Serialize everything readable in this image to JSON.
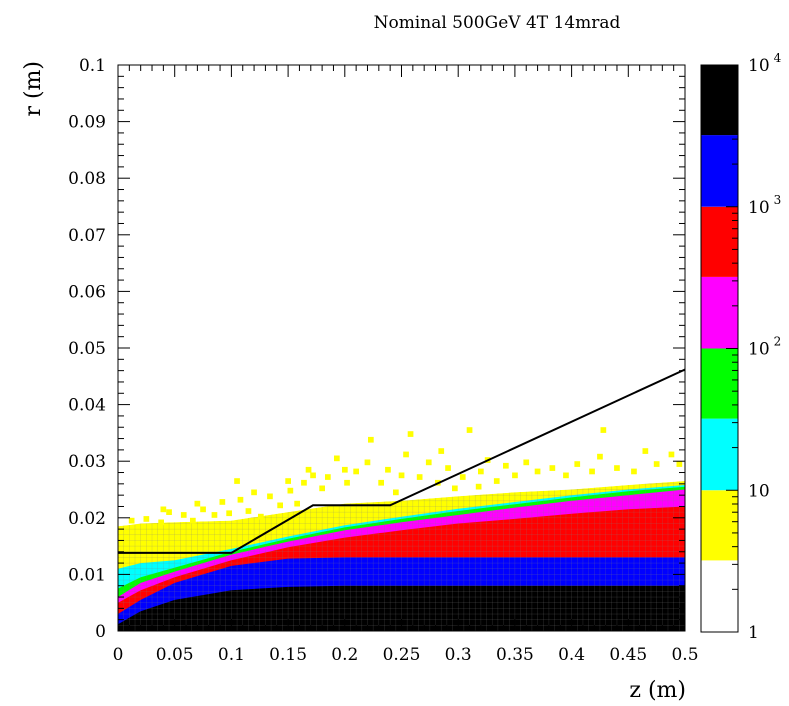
{
  "chart_data": {
    "type": "heatmap",
    "title": "Nominal 500GeV 4T 14mrad",
    "xlabel": "z (m)",
    "ylabel": "r (m)",
    "xlim": [
      0,
      0.5
    ],
    "ylim": [
      0,
      0.1
    ],
    "x_ticks": [
      "0",
      "0.05",
      "0.1",
      "0.15",
      "0.2",
      "0.25",
      "0.3",
      "0.35",
      "0.4",
      "0.45",
      "0.5"
    ],
    "y_ticks": [
      "0",
      "0.01",
      "0.02",
      "0.03",
      "0.04",
      "0.05",
      "0.06",
      "0.07",
      "0.08",
      "0.09",
      "0.1"
    ],
    "colorbar": {
      "scale": "log",
      "range": [
        1,
        10000
      ],
      "labels": [
        {
          "value": 1,
          "base": "1",
          "exp": ""
        },
        {
          "value": 10,
          "base": "10",
          "exp": ""
        },
        {
          "value": 100,
          "base": "10",
          "exp": "2"
        },
        {
          "value": 1000,
          "base": "10",
          "exp": "3"
        },
        {
          "value": 10000,
          "base": "10",
          "exp": "4"
        }
      ],
      "bands": [
        {
          "from": 1,
          "to": 3.2,
          "color": "#ffffff"
        },
        {
          "from": 3.2,
          "to": 10,
          "color": "#ffff00"
        },
        {
          "from": 10,
          "to": 32,
          "color": "#00ffff"
        },
        {
          "from": 32,
          "to": 100,
          "color": "#00ff00"
        },
        {
          "from": 100,
          "to": 320,
          "color": "#ff00ff"
        },
        {
          "from": 320,
          "to": 1000,
          "color": "#ff0000"
        },
        {
          "from": 1000,
          "to": 3200,
          "color": "#0000ff"
        },
        {
          "from": 3200,
          "to": 10000,
          "color": "#000000"
        }
      ]
    },
    "boundaries": [
      {
        "name": "black",
        "color": "#000000",
        "z": [
          0,
          0.02,
          0.05,
          0.1,
          0.15,
          0.2,
          0.3,
          0.4,
          0.5
        ],
        "r": [
          0.0012,
          0.0035,
          0.0055,
          0.0072,
          0.0078,
          0.008,
          0.008,
          0.008,
          0.008
        ]
      },
      {
        "name": "blue",
        "color": "#0000ff",
        "z": [
          0,
          0.02,
          0.05,
          0.1,
          0.15,
          0.2,
          0.3,
          0.4,
          0.5
        ],
        "r": [
          0.003,
          0.0055,
          0.0085,
          0.0115,
          0.0128,
          0.013,
          0.013,
          0.013,
          0.013
        ]
      },
      {
        "name": "red",
        "color": "#ff0000",
        "z": [
          0,
          0.02,
          0.05,
          0.1,
          0.15,
          0.2,
          0.25,
          0.3,
          0.35,
          0.4,
          0.45,
          0.5
        ],
        "r": [
          0.005,
          0.0072,
          0.0095,
          0.0125,
          0.0148,
          0.0165,
          0.0178,
          0.019,
          0.0198,
          0.0207,
          0.0215,
          0.022
        ]
      },
      {
        "name": "magenta",
        "color": "#ff00ff",
        "z": [
          0,
          0.02,
          0.05,
          0.1,
          0.15,
          0.2,
          0.25,
          0.3,
          0.35,
          0.4,
          0.45,
          0.5
        ],
        "r": [
          0.006,
          0.0085,
          0.0105,
          0.0135,
          0.0158,
          0.0178,
          0.0192,
          0.0205,
          0.0218,
          0.023,
          0.024,
          0.025
        ]
      },
      {
        "name": "green",
        "color": "#00ff00",
        "z": [
          0,
          0.02,
          0.05,
          0.1,
          0.15,
          0.2,
          0.25,
          0.3,
          0.35,
          0.4,
          0.45,
          0.5
        ],
        "r": [
          0.0075,
          0.0095,
          0.0112,
          0.014,
          0.0163,
          0.0183,
          0.0198,
          0.0212,
          0.0224,
          0.0236,
          0.0247,
          0.0255
        ]
      },
      {
        "name": "cyan",
        "color": "#00ffff",
        "z": [
          0,
          0.02,
          0.05,
          0.1,
          0.15,
          0.2,
          0.25,
          0.3,
          0.35,
          0.4,
          0.45,
          0.5
        ],
        "r": [
          0.011,
          0.012,
          0.0125,
          0.0145,
          0.0167,
          0.0187,
          0.0202,
          0.0216,
          0.0228,
          0.024,
          0.025,
          0.0258
        ]
      },
      {
        "name": "yellow",
        "color": "#ffff00",
        "z": [
          0,
          0.02,
          0.05,
          0.1,
          0.15,
          0.2,
          0.25,
          0.3,
          0.35,
          0.4,
          0.45,
          0.5
        ],
        "r": [
          0.0185,
          0.019,
          0.0192,
          0.0195,
          0.021,
          0.0225,
          0.023,
          0.0238,
          0.0245,
          0.025,
          0.0258,
          0.0265
        ]
      }
    ],
    "scatter_points": [
      {
        "z": 0.012,
        "r": 0.0195
      },
      {
        "z": 0.025,
        "r": 0.0198
      },
      {
        "z": 0.038,
        "r": 0.0192
      },
      {
        "z": 0.045,
        "r": 0.021
      },
      {
        "z": 0.058,
        "r": 0.0205
      },
      {
        "z": 0.066,
        "r": 0.0195
      },
      {
        "z": 0.075,
        "r": 0.0215
      },
      {
        "z": 0.085,
        "r": 0.0205
      },
      {
        "z": 0.092,
        "r": 0.0228
      },
      {
        "z": 0.098,
        "r": 0.0208
      },
      {
        "z": 0.108,
        "r": 0.0232
      },
      {
        "z": 0.115,
        "r": 0.0212
      },
      {
        "z": 0.126,
        "r": 0.0202
      },
      {
        "z": 0.134,
        "r": 0.0238
      },
      {
        "z": 0.143,
        "r": 0.0222
      },
      {
        "z": 0.152,
        "r": 0.0248
      },
      {
        "z": 0.158,
        "r": 0.0225
      },
      {
        "z": 0.164,
        "r": 0.0262
      },
      {
        "z": 0.172,
        "r": 0.0275
      },
      {
        "z": 0.18,
        "r": 0.0252
      },
      {
        "z": 0.185,
        "r": 0.0272
      },
      {
        "z": 0.193,
        "r": 0.0305
      },
      {
        "z": 0.202,
        "r": 0.0262
      },
      {
        "z": 0.21,
        "r": 0.0282
      },
      {
        "z": 0.22,
        "r": 0.0298
      },
      {
        "z": 0.223,
        "r": 0.0338
      },
      {
        "z": 0.232,
        "r": 0.0262
      },
      {
        "z": 0.238,
        "r": 0.0285
      },
      {
        "z": 0.245,
        "r": 0.0245
      },
      {
        "z": 0.254,
        "r": 0.0312
      },
      {
        "z": 0.258,
        "r": 0.0348
      },
      {
        "z": 0.266,
        "r": 0.0272
      },
      {
        "z": 0.274,
        "r": 0.0298
      },
      {
        "z": 0.282,
        "r": 0.0262
      },
      {
        "z": 0.291,
        "r": 0.0288
      },
      {
        "z": 0.297,
        "r": 0.0252
      },
      {
        "z": 0.304,
        "r": 0.0272
      },
      {
        "z": 0.31,
        "r": 0.0355
      },
      {
        "z": 0.32,
        "r": 0.0282
      },
      {
        "z": 0.326,
        "r": 0.0302
      },
      {
        "z": 0.334,
        "r": 0.0265
      },
      {
        "z": 0.342,
        "r": 0.0292
      },
      {
        "z": 0.35,
        "r": 0.0275
      },
      {
        "z": 0.36,
        "r": 0.0298
      },
      {
        "z": 0.37,
        "r": 0.0282
      },
      {
        "z": 0.383,
        "r": 0.0288
      },
      {
        "z": 0.395,
        "r": 0.0275
      },
      {
        "z": 0.405,
        "r": 0.0295
      },
      {
        "z": 0.418,
        "r": 0.0282
      },
      {
        "z": 0.425,
        "r": 0.0308
      },
      {
        "z": 0.428,
        "r": 0.0355
      },
      {
        "z": 0.44,
        "r": 0.0288
      },
      {
        "z": 0.455,
        "r": 0.0282
      },
      {
        "z": 0.465,
        "r": 0.0318
      },
      {
        "z": 0.475,
        "r": 0.0295
      },
      {
        "z": 0.488,
        "r": 0.0312
      },
      {
        "z": 0.495,
        "r": 0.0295
      },
      {
        "z": 0.04,
        "r": 0.0215
      },
      {
        "z": 0.07,
        "r": 0.0225
      },
      {
        "z": 0.105,
        "r": 0.0265
      },
      {
        "z": 0.12,
        "r": 0.0245
      },
      {
        "z": 0.15,
        "r": 0.0265
      },
      {
        "z": 0.168,
        "r": 0.0285
      },
      {
        "z": 0.2,
        "r": 0.0285
      },
      {
        "z": 0.25,
        "r": 0.0275
      },
      {
        "z": 0.285,
        "r": 0.0318
      },
      {
        "z": 0.318,
        "r": 0.0255
      }
    ],
    "overlay_line": {
      "color": "#000000",
      "z": [
        0,
        0.1,
        0.172,
        0.24,
        0.5
      ],
      "r": [
        0.0138,
        0.0138,
        0.0222,
        0.0222,
        0.0462
      ]
    }
  }
}
